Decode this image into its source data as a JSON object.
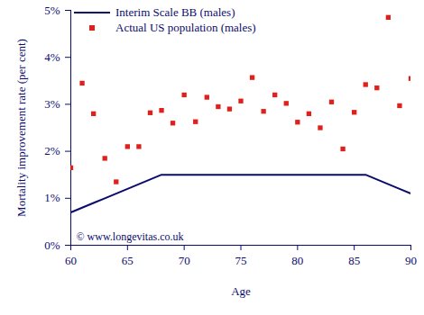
{
  "chart_data": {
    "type": "line",
    "x_label": "Age",
    "y_label": "Mortality improvement rate (per cent)",
    "annotation": "© www.longevitas.co.uk",
    "x": [
      60,
      61,
      62,
      63,
      64,
      65,
      66,
      67,
      68,
      69,
      70,
      71,
      72,
      73,
      74,
      75,
      76,
      77,
      78,
      79,
      80,
      81,
      82,
      83,
      84,
      85,
      86,
      87,
      88,
      89,
      90
    ],
    "series": [
      {
        "name": "Interim Scale BB (males)",
        "color": "#0b0b6e",
        "type": "line",
        "line_style": "solid",
        "values": [
          0.7,
          0.8,
          0.9,
          1.0,
          1.1,
          1.2,
          1.3,
          1.4,
          1.5,
          1.5,
          1.5,
          1.5,
          1.5,
          1.5,
          1.5,
          1.5,
          1.5,
          1.5,
          1.5,
          1.5,
          1.5,
          1.5,
          1.5,
          1.5,
          1.5,
          1.5,
          1.5,
          1.4,
          1.3,
          1.2,
          1.1
        ]
      },
      {
        "name": "Actual US population (males)",
        "color": "#e0201b",
        "type": "scatter",
        "marker": "square",
        "values": [
          1.65,
          3.45,
          2.8,
          1.85,
          1.35,
          2.1,
          2.1,
          2.82,
          2.87,
          2.6,
          3.2,
          2.63,
          3.15,
          2.95,
          2.9,
          3.07,
          3.57,
          2.85,
          3.2,
          3.02,
          2.62,
          2.8,
          2.5,
          3.05,
          2.05,
          2.83,
          3.42,
          3.35,
          4.85,
          2.97,
          3.55
        ]
      }
    ],
    "xlim": [
      60,
      90
    ],
    "xticks": [
      60,
      65,
      70,
      75,
      80,
      85,
      90
    ],
    "ylim": [
      0,
      5
    ],
    "yticks": [
      {
        "value": 0,
        "label": "0%"
      },
      {
        "value": 1,
        "label": "1%"
      },
      {
        "value": 2,
        "label": "2%"
      },
      {
        "value": 3,
        "label": "3%"
      },
      {
        "value": 4,
        "label": "4%"
      },
      {
        "value": 5,
        "label": "5%"
      }
    ],
    "grid": false,
    "legend": "top-left"
  }
}
